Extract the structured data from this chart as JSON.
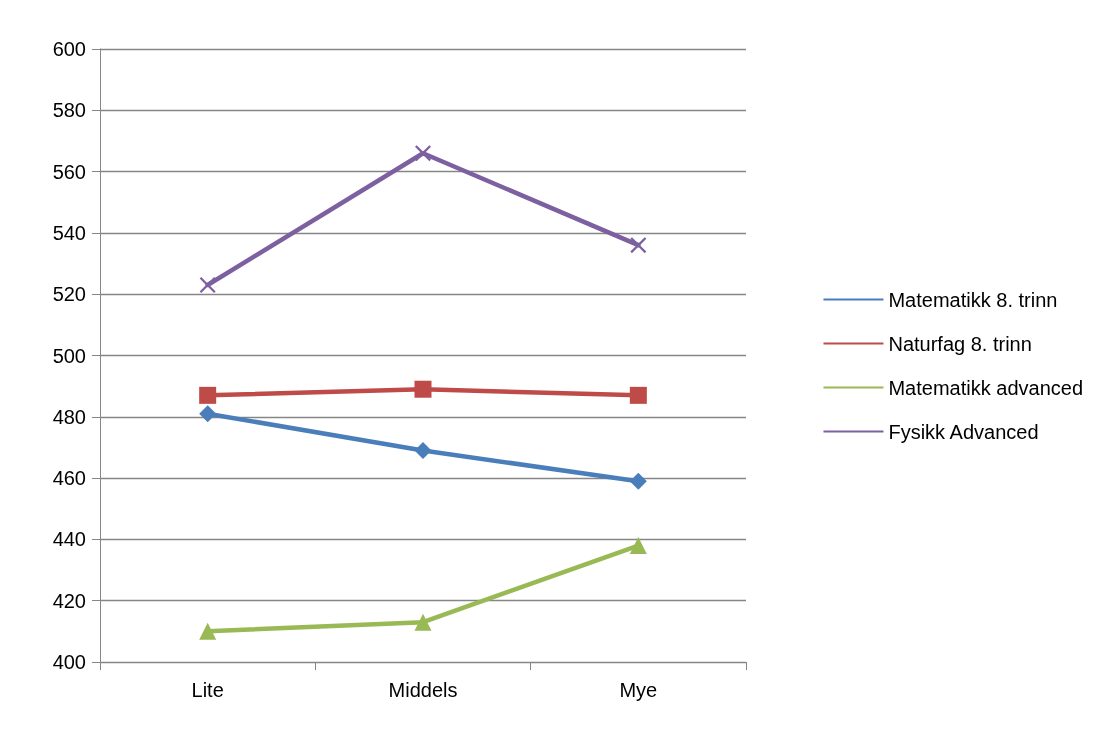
{
  "chart_data": {
    "type": "line",
    "categories": [
      "Lite",
      "Middels",
      "Mye"
    ],
    "series": [
      {
        "name": "Matematikk 8. trinn",
        "color": "#4a7ebb",
        "marker": "diamond",
        "values": [
          481,
          469,
          459
        ]
      },
      {
        "name": "Naturfag 8. trinn",
        "color": "#be4b48",
        "marker": "square",
        "values": [
          487,
          489,
          487
        ]
      },
      {
        "name": "Matematikk advanced",
        "color": "#98b954",
        "marker": "triangle",
        "values": [
          410,
          413,
          438
        ]
      },
      {
        "name": "Fysikk Advanced",
        "color": "#7d60a0",
        "marker": "cross",
        "values": [
          523,
          566,
          536
        ]
      }
    ],
    "ylim": [
      400,
      600
    ],
    "yticks": [
      400,
      420,
      440,
      460,
      480,
      500,
      520,
      540,
      560,
      580,
      600
    ],
    "grid": "y",
    "legend": "right",
    "line_style": "solid"
  }
}
